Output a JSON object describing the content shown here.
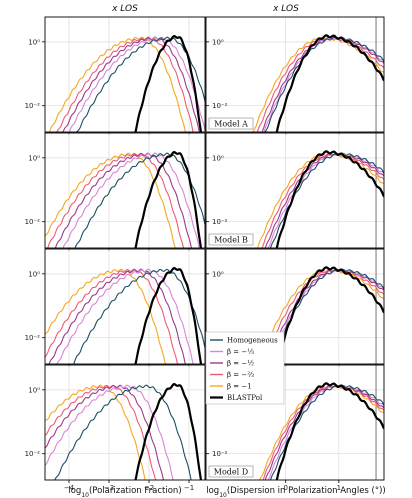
{
  "chart_data": {
    "type": "line",
    "columns": [
      {
        "title": "x LOS",
        "xlabel": "log10(Polarization Fraction)",
        "xlim": [
          -4.6,
          -0.6
        ],
        "xticks": [
          -4,
          -3,
          -2,
          -1
        ],
        "xtick_labels": [
          "−4",
          "−3",
          "−2",
          "−1"
        ]
      },
      {
        "title": "x LOS",
        "xlabel": "log10(Dispersion in Polarization Angles (°))",
        "xlim": [
          -1.5,
          1.85
        ],
        "xticks": [
          0,
          1
        ],
        "xtick_labels": [
          "0",
          "1"
        ]
      }
    ],
    "yscale": "log",
    "ylim": [
      0.0015,
      6
    ],
    "yticks": [
      0.01,
      1
    ],
    "ytick_labels": [
      "10⁻²",
      "10⁰"
    ],
    "rows": [
      "Model A",
      "Model B",
      "Model C",
      "Model D"
    ],
    "series": [
      {
        "key": "homogeneous",
        "name": "Homogeneous",
        "color": "#1b4f63"
      },
      {
        "key": "b13",
        "name": "β = −⅓",
        "color": "#d985d9"
      },
      {
        "key": "b12",
        "name": "β = −½",
        "color": "#9b3a8c"
      },
      {
        "key": "b23",
        "name": "β = −⅔",
        "color": "#f05a78"
      },
      {
        "key": "b1",
        "name": "β = −1",
        "color": "#f5a81e"
      },
      {
        "key": "blast",
        "name": "BLASTPol",
        "color": "#000000"
      }
    ],
    "legend": {
      "panel": "Model C, right",
      "entries": [
        "Homogeneous",
        "β = −⅓",
        "β = −½",
        "β = −⅔",
        "β = −1",
        "BLASTPol"
      ]
    },
    "fraction_peaks": {
      "note": "log10 position of each curve's peak, peak height ~1.3",
      "rows": [
        {
          "homogeneous": -1.5,
          "b13": -1.7,
          "b12": -1.85,
          "b23": -2.0,
          "b1": -2.2,
          "blast": -1.3
        },
        {
          "homogeneous": -1.55,
          "b13": -1.85,
          "b12": -2.05,
          "b23": -2.25,
          "b1": -2.45,
          "blast": -1.3
        },
        {
          "homogeneous": -1.6,
          "b13": -2.0,
          "b12": -2.2,
          "b23": -2.4,
          "b1": -2.7,
          "blast": -1.3
        },
        {
          "homogeneous": -2.05,
          "b13": -2.5,
          "b12": -2.75,
          "b23": -2.95,
          "b1": -3.2,
          "blast": -1.3
        }
      ]
    },
    "dispersion_peaks": {
      "rows": [
        {
          "homogeneous": 0.95,
          "b13": 0.92,
          "b12": 0.88,
          "b23": 0.8,
          "b1": 0.72,
          "blast": 0.8
        },
        {
          "homogeneous": 1.05,
          "b13": 1.0,
          "b12": 0.95,
          "b23": 0.88,
          "b1": 0.8,
          "blast": 0.8
        },
        {
          "homogeneous": 1.05,
          "b13": 1.02,
          "b12": 0.98,
          "b23": 0.9,
          "b1": 0.82,
          "blast": 0.8
        },
        {
          "homogeneous": 1.05,
          "b13": 1.0,
          "b12": 0.95,
          "b23": 0.9,
          "b1": 0.85,
          "blast": 0.8
        }
      ]
    },
    "dispersion_vline": 1.7
  }
}
